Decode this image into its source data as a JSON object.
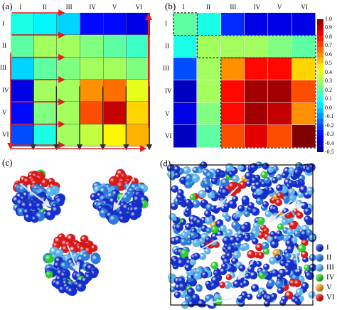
{
  "panels": {
    "a": {
      "label": "(a)"
    },
    "b": {
      "label": "(b)"
    },
    "c": {
      "label": "(c)"
    },
    "d": {
      "label": "(d)"
    }
  },
  "roman_labels": [
    "I",
    "II",
    "III",
    "IV",
    "V",
    "VI"
  ],
  "colorbar": {
    "ticks": [
      "1.0",
      "0.9",
      "0.8",
      "0.7",
      "0.6",
      "0.5",
      "0.4",
      "0.3",
      "0.2",
      "0.1",
      "0.0",
      "-0.1",
      "-0.2",
      "-0.3",
      "-0.4",
      "-0.5"
    ],
    "min": -0.5,
    "max": 1.0
  },
  "chart_data": [
    {
      "type": "heatmap",
      "panel": "a",
      "rows": [
        "I",
        "II",
        "III",
        "IV",
        "V",
        "VI"
      ],
      "columns": [
        "I",
        "II",
        "III",
        "IV",
        "V",
        "VI"
      ],
      "values": [
        [
          0.1,
          0.05,
          0.0,
          -0.3,
          -0.3,
          -0.35
        ],
        [
          0.2,
          0.3,
          0.3,
          0.25,
          0.2,
          0.15
        ],
        [
          0.0,
          0.2,
          0.25,
          0.3,
          0.3,
          0.25
        ],
        [
          -0.35,
          0.3,
          0.3,
          0.6,
          0.65,
          0.4
        ],
        [
          -0.3,
          0.25,
          0.3,
          0.7,
          0.9,
          0.5
        ],
        [
          -0.2,
          0.1,
          0.3,
          0.35,
          0.45,
          0.55
        ]
      ],
      "vmin": -0.5,
      "vmax": 1.0,
      "overlay": "arrows",
      "arrow_colors": [
        "#e02020",
        "#303030"
      ]
    },
    {
      "type": "heatmap",
      "panel": "b",
      "rows": [
        "I",
        "II",
        "III",
        "IV",
        "V",
        "VI"
      ],
      "columns": [
        "I",
        "II",
        "III",
        "IV",
        "V",
        "VI"
      ],
      "values": [
        [
          0.2,
          0.1,
          -0.25,
          -0.35,
          -0.35,
          -0.35
        ],
        [
          0.1,
          0.3,
          0.3,
          0.3,
          0.25,
          0.2
        ],
        [
          -0.2,
          0.3,
          0.6,
          0.8,
          0.8,
          0.5
        ],
        [
          -0.4,
          0.3,
          0.8,
          0.95,
          0.95,
          0.7
        ],
        [
          -0.35,
          0.25,
          0.8,
          0.95,
          0.9,
          0.6
        ],
        [
          -0.4,
          0.2,
          0.7,
          0.85,
          0.7,
          1.0
        ]
      ],
      "vmin": -0.5,
      "vmax": 1.0,
      "overlay": "dashed-blocks"
    }
  ],
  "legend_d": {
    "items": [
      {
        "label": "I",
        "color": "#1530d0"
      },
      {
        "label": "II",
        "color": "#2a7ae0"
      },
      {
        "label": "III",
        "color": "#5ab4f0"
      },
      {
        "label": "IV",
        "color": "#2ad02a"
      },
      {
        "label": "V",
        "color": "#f0a020"
      },
      {
        "label": "VI",
        "color": "#e01818"
      }
    ]
  },
  "colors": {
    "arrow_red": "#e02020",
    "arrow_dark": "#303030",
    "vector": "#dfe8f5",
    "box": "#000000"
  }
}
